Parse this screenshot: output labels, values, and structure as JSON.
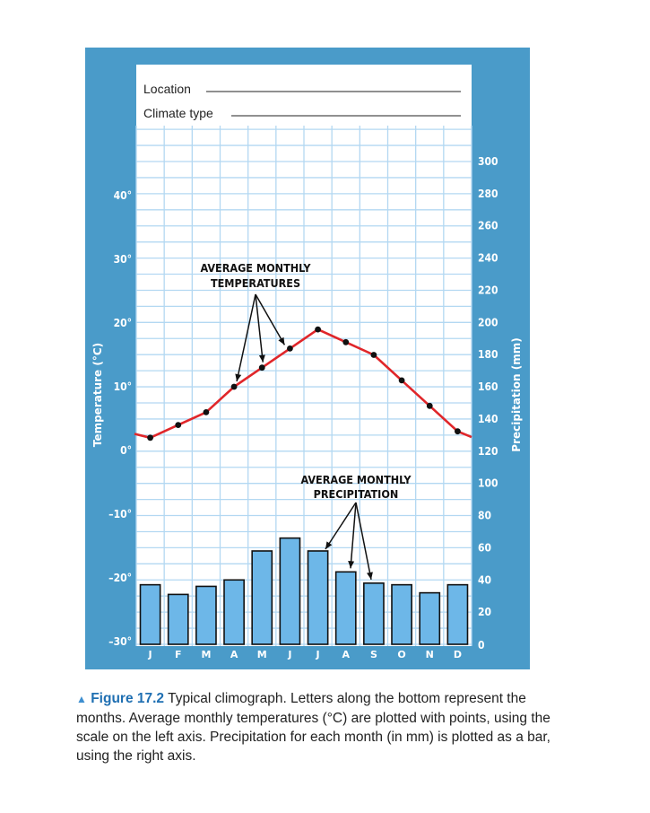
{
  "form": {
    "location_label": "Location",
    "climate_type_label": "Climate type"
  },
  "chart_data": {
    "type": "bar",
    "categories": [
      "J",
      "F",
      "M",
      "A",
      "M",
      "J",
      "J",
      "A",
      "S",
      "O",
      "N",
      "D"
    ],
    "series": [
      {
        "name": "AVERAGE MONTHLY TEMPERATURES",
        "type": "line",
        "axis": "left",
        "values": [
          2,
          4,
          6,
          10,
          13,
          16,
          19,
          17,
          15,
          11,
          7,
          3
        ]
      },
      {
        "name": "AVERAGE MONTHLY PRECIPITATION",
        "type": "bar",
        "axis": "right",
        "values": [
          37,
          31,
          36,
          40,
          58,
          66,
          58,
          45,
          38,
          37,
          32,
          37
        ]
      }
    ],
    "ylabel_left": "Temperature (°C)",
    "ylabel_right": "Precipitation (mm)",
    "ylim_left": [
      -30,
      50
    ],
    "ylim_right": [
      0,
      300
    ],
    "yticks_left": [
      "40°",
      "30°",
      "20°",
      "10°",
      "0°",
      "–10°",
      "–20°",
      "–30°"
    ],
    "yticks_right": [
      "300",
      "280",
      "260",
      "240",
      "220",
      "200",
      "180",
      "160",
      "140",
      "120",
      "100",
      "80",
      "60",
      "40",
      "20",
      "0"
    ],
    "annotations": {
      "temperature": [
        "AVERAGE MONTHLY",
        "TEMPERATURES"
      ],
      "precipitation": [
        "AVERAGE MONTHLY",
        "PRECIPITATION"
      ]
    },
    "grid": true,
    "colors": {
      "frame": "#4a9bc9",
      "grid": "#b3d8f2",
      "bar": "#6db7e8",
      "bar_stroke": "#111111",
      "line": "#e0262a",
      "point": "#111111"
    }
  },
  "caption": {
    "figure_label": "Figure 17.2",
    "text": "Typical climograph. Letters along the bottom represent the months. Average monthly temperatures (°C) are plotted with points, using the scale on the left axis. Precipitation for each month (in mm) is plotted as a bar, using the right axis."
  }
}
